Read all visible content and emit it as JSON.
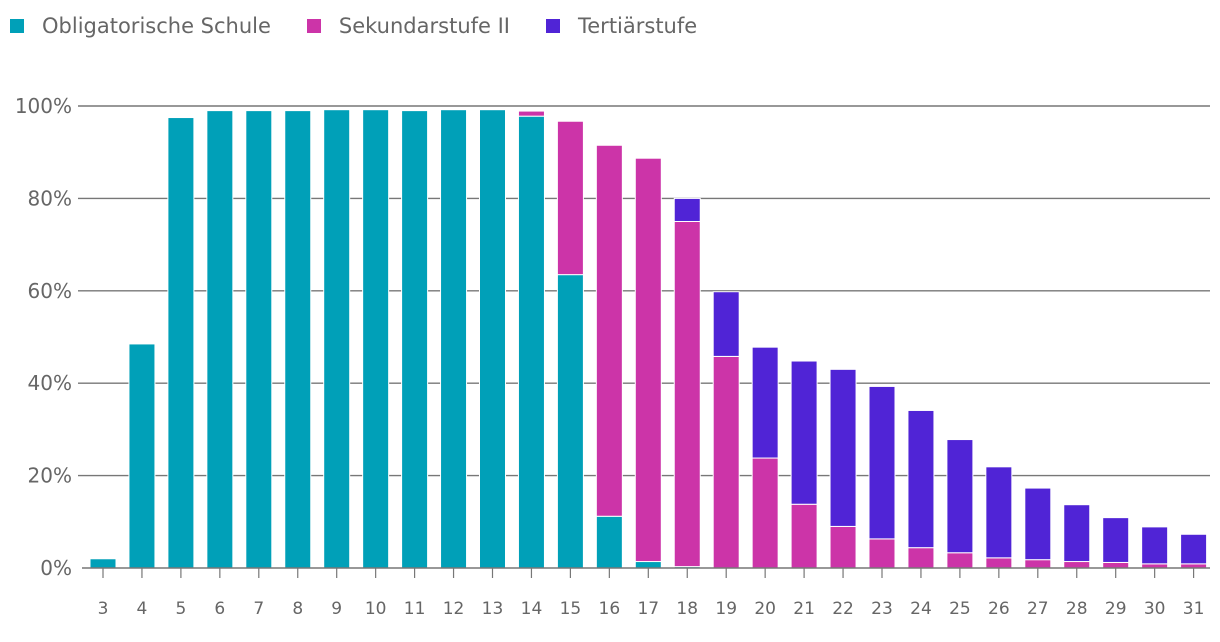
{
  "chart_data": {
    "type": "bar",
    "stacked": true,
    "categories": [
      "3",
      "4",
      "5",
      "6",
      "7",
      "8",
      "9",
      "10",
      "11",
      "12",
      "13",
      "14",
      "15",
      "16",
      "17",
      "18",
      "19",
      "20",
      "21",
      "22",
      "23",
      "24",
      "25",
      "26",
      "27",
      "28",
      "29",
      "30",
      "31"
    ],
    "series": [
      {
        "name": "Obligatorische Schule",
        "color": "#00A0B8",
        "values": [
          2,
          48.5,
          97.5,
          99,
          99,
          99,
          99.2,
          99.2,
          99,
          99.2,
          99.2,
          97.8,
          63.5,
          11.2,
          1.4,
          0.3,
          0,
          0,
          0,
          0,
          0,
          0,
          0,
          0,
          0,
          0,
          0,
          0,
          0
        ]
      },
      {
        "name": "Sekundarstufe II",
        "color": "#CC34A8",
        "values": [
          0,
          0,
          0,
          0,
          0,
          0,
          0,
          0,
          0,
          0,
          0,
          1.1,
          33.2,
          80.3,
          87.3,
          74.7,
          45.8,
          23.8,
          13.8,
          9,
          6.3,
          4.4,
          3.3,
          2.2,
          1.8,
          1.4,
          1.2,
          0.9,
          0.9
        ]
      },
      {
        "name": "Tertiärstufe",
        "color": "#5024D6",
        "values": [
          0,
          0,
          0,
          0,
          0,
          0,
          0,
          0,
          0,
          0,
          0,
          0,
          0,
          0,
          0,
          5,
          14,
          24,
          31,
          34,
          33,
          29.7,
          24.5,
          19.7,
          15.5,
          12.3,
          9.7,
          8,
          6.4
        ]
      }
    ],
    "y_ticks": [
      "0%",
      "20%",
      "40%",
      "60%",
      "80%",
      "100%"
    ],
    "ylim": [
      0,
      100
    ],
    "grid": true,
    "legend_position": "top-left"
  }
}
